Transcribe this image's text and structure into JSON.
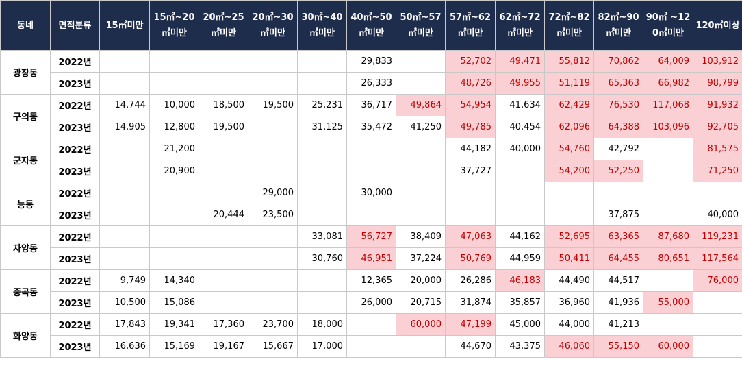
{
  "headers": [
    "동네",
    "면적분류",
    "15㎡미만",
    "15㎡~20㎡미만",
    "20㎡~25㎡미만",
    "20㎡~30㎡미만",
    "30㎡~40㎡미만",
    "40㎡~50㎡미만",
    "50㎡~57㎡미만",
    "57㎡~62㎡미만",
    "62㎡~72㎡미만",
    "72㎡~82㎡미만",
    "82㎡~90㎡미만",
    "90㎡ ~120㎡미만",
    "120㎡이상"
  ],
  "highlight_color": "#fbd0d4",
  "highlight_text_color": "#c00000",
  "header_bg": "#1f2d4d",
  "groups": [
    {
      "dong": "광장동",
      "rows": [
        {
          "year": "2022년",
          "cells": [
            [
              "",
              0
            ],
            [
              "",
              0
            ],
            [
              "",
              0
            ],
            [
              "",
              0
            ],
            [
              "",
              0
            ],
            [
              "29,833",
              0
            ],
            [
              "",
              0
            ],
            [
              "52,702",
              1
            ],
            [
              "49,471",
              1
            ],
            [
              "55,812",
              1
            ],
            [
              "70,862",
              1
            ],
            [
              "64,009",
              1
            ],
            [
              "103,912",
              1
            ]
          ]
        },
        {
          "year": "2023년",
          "cells": [
            [
              "",
              0
            ],
            [
              "",
              0
            ],
            [
              "",
              0
            ],
            [
              "",
              0
            ],
            [
              "",
              0
            ],
            [
              "26,333",
              0
            ],
            [
              "",
              0
            ],
            [
              "48,726",
              1
            ],
            [
              "49,955",
              1
            ],
            [
              "51,119",
              1
            ],
            [
              "65,363",
              1
            ],
            [
              "66,982",
              1
            ],
            [
              "98,799",
              1
            ]
          ]
        }
      ]
    },
    {
      "dong": "구의동",
      "rows": [
        {
          "year": "2022년",
          "cells": [
            [
              "14,744",
              0
            ],
            [
              "10,000",
              0
            ],
            [
              "18,500",
              0
            ],
            [
              "19,500",
              0
            ],
            [
              "25,231",
              0
            ],
            [
              "36,717",
              0
            ],
            [
              "49,864",
              1
            ],
            [
              "54,954",
              1
            ],
            [
              "41,634",
              0
            ],
            [
              "62,429",
              1
            ],
            [
              "76,530",
              1
            ],
            [
              "117,068",
              1
            ],
            [
              "91,932",
              1
            ]
          ]
        },
        {
          "year": "2023년",
          "cells": [
            [
              "14,905",
              0
            ],
            [
              "12,800",
              0
            ],
            [
              "19,500",
              0
            ],
            [
              "",
              0
            ],
            [
              "31,125",
              0
            ],
            [
              "35,472",
              0
            ],
            [
              "41,250",
              0
            ],
            [
              "49,785",
              1
            ],
            [
              "40,454",
              0
            ],
            [
              "62,096",
              1
            ],
            [
              "64,388",
              1
            ],
            [
              "103,096",
              1
            ],
            [
              "92,705",
              1
            ]
          ]
        }
      ]
    },
    {
      "dong": "군자동",
      "rows": [
        {
          "year": "2022년",
          "cells": [
            [
              "",
              0
            ],
            [
              "21,200",
              0
            ],
            [
              "",
              0
            ],
            [
              "",
              0
            ],
            [
              "",
              0
            ],
            [
              "",
              0
            ],
            [
              "",
              0
            ],
            [
              "44,182",
              0
            ],
            [
              "40,000",
              0
            ],
            [
              "54,760",
              1
            ],
            [
              "42,792",
              0
            ],
            [
              "",
              0
            ],
            [
              "81,575",
              1
            ]
          ]
        },
        {
          "year": "2023년",
          "cells": [
            [
              "",
              0
            ],
            [
              "20,900",
              0
            ],
            [
              "",
              0
            ],
            [
              "",
              0
            ],
            [
              "",
              0
            ],
            [
              "",
              0
            ],
            [
              "",
              0
            ],
            [
              "37,727",
              0
            ],
            [
              "",
              0
            ],
            [
              "54,200",
              1
            ],
            [
              "52,250",
              1
            ],
            [
              "",
              0
            ],
            [
              "71,250",
              1
            ]
          ]
        }
      ]
    },
    {
      "dong": "능동",
      "rows": [
        {
          "year": "2022년",
          "cells": [
            [
              "",
              0
            ],
            [
              "",
              0
            ],
            [
              "",
              0
            ],
            [
              "29,000",
              0
            ],
            [
              "",
              0
            ],
            [
              "30,000",
              0
            ],
            [
              "",
              0
            ],
            [
              "",
              0
            ],
            [
              "",
              0
            ],
            [
              "",
              0
            ],
            [
              "",
              0
            ],
            [
              "",
              0
            ],
            [
              "",
              0
            ]
          ]
        },
        {
          "year": "2023년",
          "cells": [
            [
              "",
              0
            ],
            [
              "",
              0
            ],
            [
              "20,444",
              0
            ],
            [
              "23,500",
              0
            ],
            [
              "",
              0
            ],
            [
              "",
              0
            ],
            [
              "",
              0
            ],
            [
              "",
              0
            ],
            [
              "",
              0
            ],
            [
              "",
              0
            ],
            [
              "37,875",
              0
            ],
            [
              "",
              0
            ],
            [
              "40,000",
              0
            ]
          ]
        }
      ]
    },
    {
      "dong": "자양동",
      "rows": [
        {
          "year": "2022년",
          "cells": [
            [
              "",
              0
            ],
            [
              "",
              0
            ],
            [
              "",
              0
            ],
            [
              "",
              0
            ],
            [
              "33,081",
              0
            ],
            [
              "56,727",
              1
            ],
            [
              "38,409",
              0
            ],
            [
              "47,063",
              1
            ],
            [
              "44,162",
              0
            ],
            [
              "52,695",
              1
            ],
            [
              "63,365",
              1
            ],
            [
              "87,680",
              1
            ],
            [
              "119,231",
              1
            ]
          ]
        },
        {
          "year": "2023년",
          "cells": [
            [
              "",
              0
            ],
            [
              "",
              0
            ],
            [
              "",
              0
            ],
            [
              "",
              0
            ],
            [
              "30,760",
              0
            ],
            [
              "46,951",
              1
            ],
            [
              "37,224",
              0
            ],
            [
              "50,769",
              1
            ],
            [
              "44,959",
              0
            ],
            [
              "50,411",
              1
            ],
            [
              "64,455",
              1
            ],
            [
              "80,651",
              1
            ],
            [
              "117,564",
              1
            ]
          ]
        }
      ]
    },
    {
      "dong": "중곡동",
      "rows": [
        {
          "year": "2022년",
          "cells": [
            [
              "9,749",
              0
            ],
            [
              "14,340",
              0
            ],
            [
              "",
              0
            ],
            [
              "",
              0
            ],
            [
              "",
              0
            ],
            [
              "12,365",
              0
            ],
            [
              "20,000",
              0
            ],
            [
              "26,286",
              0
            ],
            [
              "46,183",
              1
            ],
            [
              "44,490",
              0
            ],
            [
              "44,517",
              0
            ],
            [
              "",
              0
            ],
            [
              "76,000",
              1
            ]
          ]
        },
        {
          "year": "2023년",
          "cells": [
            [
              "10,500",
              0
            ],
            [
              "15,086",
              0
            ],
            [
              "",
              0
            ],
            [
              "",
              0
            ],
            [
              "",
              0
            ],
            [
              "26,000",
              0
            ],
            [
              "20,715",
              0
            ],
            [
              "31,874",
              0
            ],
            [
              "35,857",
              0
            ],
            [
              "36,960",
              0
            ],
            [
              "41,936",
              0
            ],
            [
              "55,000",
              1
            ],
            [
              "",
              0
            ]
          ]
        }
      ]
    },
    {
      "dong": "화양동",
      "rows": [
        {
          "year": "2022년",
          "cells": [
            [
              "17,843",
              0
            ],
            [
              "19,341",
              0
            ],
            [
              "17,360",
              0
            ],
            [
              "23,700",
              0
            ],
            [
              "18,000",
              0
            ],
            [
              "",
              0
            ],
            [
              "60,000",
              1
            ],
            [
              "47,199",
              1
            ],
            [
              "45,000",
              0
            ],
            [
              "44,000",
              0
            ],
            [
              "41,213",
              0
            ],
            [
              "",
              0
            ],
            [
              "",
              0
            ]
          ]
        },
        {
          "year": "2023년",
          "cells": [
            [
              "16,636",
              0
            ],
            [
              "15,169",
              0
            ],
            [
              "19,167",
              0
            ],
            [
              "15,667",
              0
            ],
            [
              "17,000",
              0
            ],
            [
              "",
              0
            ],
            [
              "",
              0
            ],
            [
              "44,670",
              0
            ],
            [
              "43,375",
              0
            ],
            [
              "46,060",
              1
            ],
            [
              "55,150",
              1
            ],
            [
              "60,000",
              1
            ],
            [
              "",
              0
            ]
          ]
        }
      ]
    }
  ]
}
